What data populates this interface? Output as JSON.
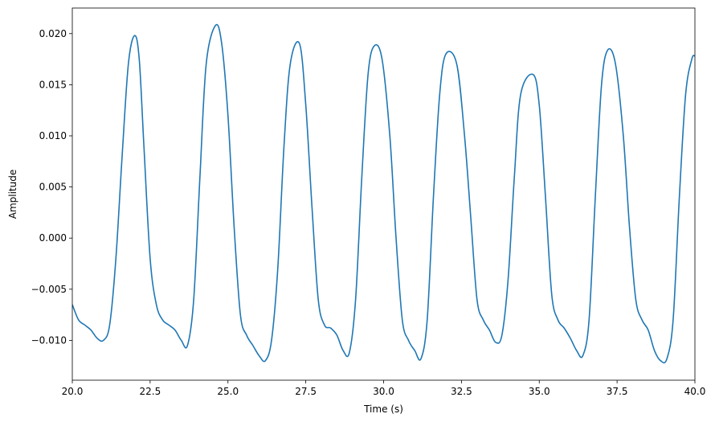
{
  "chart_data": {
    "type": "line",
    "title": "",
    "xlabel": "Time (s)",
    "ylabel": "Amplitude",
    "xlim": [
      20.0,
      40.0
    ],
    "ylim": [
      -0.0139,
      0.0225
    ],
    "grid": false,
    "legend": "none",
    "line_color": "#1f77b4",
    "x_ticks": [
      20.0,
      22.5,
      25.0,
      27.5,
      30.0,
      32.5,
      35.0,
      37.5,
      40.0
    ],
    "x_tick_labels": [
      "20.0",
      "22.5",
      "25.0",
      "27.5",
      "30.0",
      "32.5",
      "35.0",
      "37.5",
      "40.0"
    ],
    "y_ticks": [
      -0.01,
      -0.005,
      0.0,
      0.005,
      0.01,
      0.015,
      0.02
    ],
    "y_tick_labels": [
      "−0.010",
      "−0.005",
      "0.000",
      "0.005",
      "0.010",
      "0.015",
      "0.020"
    ],
    "series": [
      {
        "x": [
          20.0,
          20.2,
          20.4,
          20.6,
          20.8,
          21.0,
          21.2,
          21.4,
          21.6,
          21.8,
          22.0,
          22.15,
          22.3,
          22.5,
          22.7,
          22.9,
          23.1,
          23.3,
          23.5,
          23.7,
          23.9,
          24.1,
          24.3,
          24.6,
          24.8,
          25.0,
          25.2,
          25.4,
          25.6,
          25.8,
          26.0,
          26.2,
          26.4,
          26.6,
          26.8,
          27.0,
          27.3,
          27.5,
          27.7,
          27.9,
          28.1,
          28.3,
          28.5,
          28.7,
          28.9,
          29.1,
          29.3,
          29.5,
          29.7,
          29.95,
          30.2,
          30.4,
          30.6,
          30.8,
          31.0,
          31.2,
          31.4,
          31.6,
          31.8,
          32.0,
          32.35,
          32.6,
          32.8,
          33.0,
          33.2,
          33.4,
          33.6,
          33.8,
          34.0,
          34.2,
          34.4,
          34.8,
          35.0,
          35.2,
          35.4,
          35.6,
          35.8,
          36.0,
          36.2,
          36.4,
          36.6,
          36.8,
          37.0,
          37.2,
          37.45,
          37.7,
          37.9,
          38.1,
          38.3,
          38.5,
          38.7,
          38.9,
          39.1,
          39.3,
          39.5,
          39.7,
          39.9,
          40.0
        ],
        "y": [
          -0.0065,
          -0.008,
          -0.0085,
          -0.009,
          -0.0098,
          -0.01,
          -0.0085,
          -0.002,
          0.008,
          0.017,
          0.0198,
          0.0175,
          0.009,
          -0.002,
          -0.0065,
          -0.008,
          -0.0085,
          -0.009,
          -0.01,
          -0.0105,
          -0.006,
          0.006,
          0.017,
          0.0208,
          0.019,
          0.012,
          0.001,
          -0.0075,
          -0.0095,
          -0.0105,
          -0.0115,
          -0.012,
          -0.01,
          -0.003,
          0.009,
          0.017,
          0.019,
          0.013,
          0.003,
          -0.006,
          -0.0085,
          -0.0088,
          -0.0095,
          -0.011,
          -0.0112,
          -0.006,
          0.006,
          0.016,
          0.0188,
          0.0175,
          0.01,
          0.0,
          -0.008,
          -0.01,
          -0.011,
          -0.0118,
          -0.008,
          0.004,
          0.014,
          0.018,
          0.017,
          0.01,
          0.002,
          -0.006,
          -0.008,
          -0.009,
          -0.0102,
          -0.0095,
          -0.004,
          0.006,
          0.014,
          0.016,
          0.013,
          0.004,
          -0.0055,
          -0.008,
          -0.0088,
          -0.0098,
          -0.011,
          -0.0115,
          -0.008,
          0.004,
          0.015,
          0.0184,
          0.017,
          0.01,
          0.001,
          -0.006,
          -0.008,
          -0.009,
          -0.011,
          -0.012,
          -0.0118,
          -0.008,
          0.004,
          0.014,
          0.0175,
          0.0178
        ]
      }
    ]
  }
}
